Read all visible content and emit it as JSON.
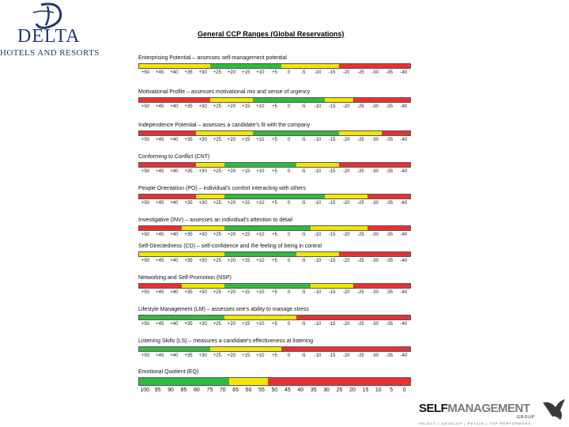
{
  "logo": {
    "word": "DELTA",
    "sub": "HOTELS AND RESORTS"
  },
  "title": "General CCP Ranges (Global Reservations)",
  "scale_values": [
    "+50",
    "+45",
    "+40",
    "+35",
    "+30",
    "+25",
    "+20",
    "+15",
    "+10",
    "+5",
    "0",
    "-5",
    "-10",
    "-15",
    "-20",
    "-25",
    "-30",
    "-35",
    "-40"
  ],
  "colors": {
    "red": "#e8312f",
    "yellow": "#f2e600",
    "green": "#2fbb3c"
  },
  "sections": [
    {
      "label": "Enterprising Potential – assesses self-management potential",
      "segments": [
        "y",
        "y",
        "y",
        "y",
        "y",
        "g",
        "g",
        "g",
        "g",
        "g",
        "y",
        "y",
        "y",
        "y",
        "r",
        "r",
        "r",
        "r",
        "r"
      ]
    },
    {
      "label": "Motivational Profile – assesses motivational mix and sense of urgency",
      "segments": [
        "r",
        "r",
        "r",
        "r",
        "r",
        "y",
        "y",
        "y",
        "g",
        "g",
        "g",
        "g",
        "g",
        "y",
        "y",
        "r",
        "r",
        "r",
        "r"
      ]
    },
    {
      "label": "Independence Potential – assesses a candidate's fit with the company",
      "segments": [
        "r",
        "r",
        "r",
        "r",
        "y",
        "y",
        "y",
        "y",
        "g",
        "g",
        "g",
        "g",
        "g",
        "g",
        "y",
        "y",
        "y",
        "r",
        "r"
      ]
    },
    {
      "label": "Conforming to Conflict (CNT)",
      "segments": [
        "r",
        "r",
        "r",
        "r",
        "y",
        "y",
        "g",
        "g",
        "g",
        "g",
        "g",
        "y",
        "y",
        "y",
        "r",
        "r",
        "r",
        "r",
        "r"
      ]
    },
    {
      "label": "People Orientation (PO) – individual's comfort interacting with others",
      "segments": [
        "r",
        "r",
        "r",
        "r",
        "y",
        "y",
        "g",
        "g",
        "g",
        "g",
        "g",
        "g",
        "g",
        "y",
        "y",
        "y",
        "r",
        "r",
        "r"
      ]
    },
    {
      "label": "Investigative (INV) – assesses an individual's attention to detail",
      "segments": [
        "r",
        "r",
        "r",
        "y",
        "y",
        "y",
        "g",
        "g",
        "g",
        "g",
        "g",
        "g",
        "y",
        "y",
        "y",
        "y",
        "r",
        "r",
        "r"
      ]
    },
    {
      "label": "Self-Directedness (CD) – self-confidence and the feeling of being in control",
      "segments": [
        "y",
        "y",
        "y",
        "y",
        "y",
        "y",
        "g",
        "g",
        "g",
        "g",
        "g",
        "y",
        "y",
        "y",
        "r",
        "r",
        "r",
        "r",
        "r"
      ]
    },
    {
      "label": "Networking and Self-Promotion (NSP)",
      "segments": [
        "r",
        "r",
        "r",
        "y",
        "y",
        "y",
        "g",
        "g",
        "g",
        "g",
        "g",
        "g",
        "y",
        "y",
        "y",
        "r",
        "r",
        "r",
        "r"
      ]
    },
    {
      "label": "Lifestyle Management (LM) – assesses one's ability to manage stress",
      "segments": [
        "g",
        "g",
        "g",
        "g",
        "g",
        "g",
        "y",
        "y",
        "y",
        "y",
        "y",
        "r",
        "r",
        "r",
        "r",
        "r",
        "r",
        "r",
        "r"
      ]
    },
    {
      "label": "Listening Skills (LS) – measures a candidate's effectiveness at listening",
      "segments": [
        "g",
        "g",
        "g",
        "g",
        "g",
        "y",
        "y",
        "y",
        "y",
        "y",
        "r",
        "r",
        "r",
        "r",
        "r",
        "r",
        "r",
        "r",
        "r"
      ]
    }
  ],
  "eq": {
    "label": "Emotional Quotient (EQ)",
    "scale": [
      "100",
      "95",
      "90",
      "85",
      "80",
      "75",
      "70",
      "65",
      "60",
      "55",
      "50",
      "45",
      "40",
      "35",
      "30",
      "25",
      "20",
      "15",
      "10",
      "5",
      "0"
    ],
    "segments": [
      "g",
      "g",
      "g",
      "g",
      "g",
      "g",
      "g",
      "y",
      "y",
      "y",
      "r",
      "r",
      "r",
      "r",
      "r",
      "r",
      "r",
      "r",
      "r",
      "r",
      "r"
    ]
  },
  "brand": {
    "self": "SELF",
    "mgmt": "MANAGEMENT",
    "group": "GROUP",
    "tagline": "SELECT | DEVELOP | RETAIN | TOP PERFORMERS"
  }
}
